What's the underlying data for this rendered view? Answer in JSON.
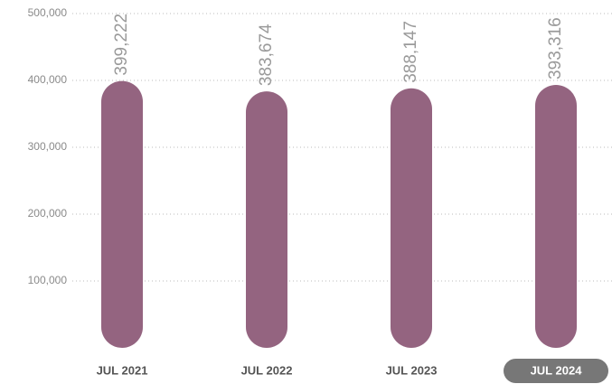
{
  "chart_data": {
    "type": "bar",
    "categories": [
      "JUL 2021",
      "JUL 2022",
      "JUL 2023",
      "JUL 2024"
    ],
    "values": [
      399222,
      383674,
      388147,
      393316
    ],
    "value_labels": [
      "399,222",
      "383,674",
      "388,147",
      "393,316"
    ],
    "color": "#946480",
    "ylim": [
      0,
      500000
    ],
    "yticks": [
      {
        "value": 100000,
        "label": "100,000"
      },
      {
        "value": 200000,
        "label": "200,000"
      },
      {
        "value": 300000,
        "label": "300,000"
      },
      {
        "value": 400000,
        "label": "400,000"
      },
      {
        "value": 500000,
        "label": "500,000"
      }
    ],
    "grid": true,
    "highlight_index": 3
  }
}
